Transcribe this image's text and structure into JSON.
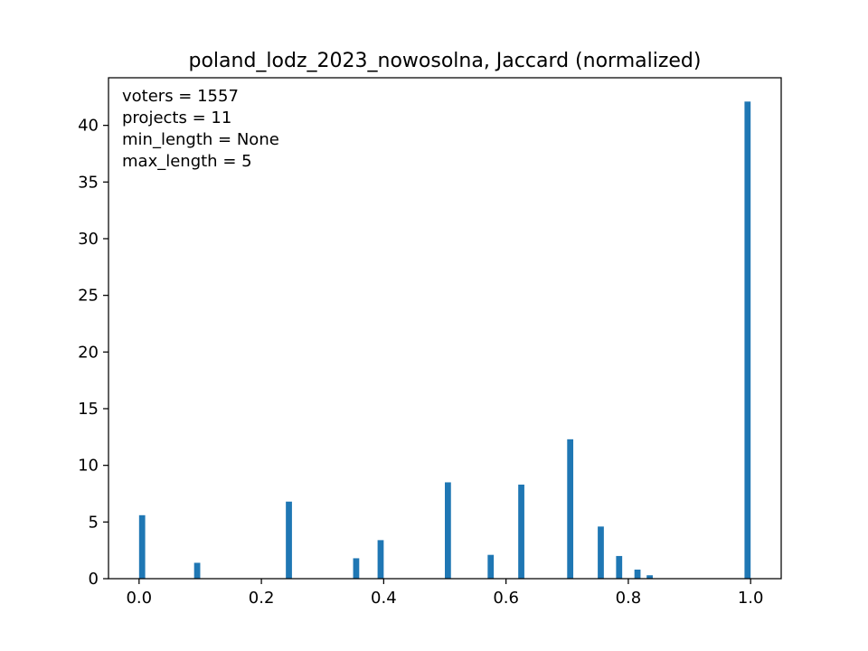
{
  "chart_data": {
    "type": "bar",
    "title": "poland_lodz_2023_nowosolna, Jaccard (normalized)",
    "xlabel": "",
    "ylabel": "",
    "xlim": [
      -0.05,
      1.05
    ],
    "ylim": [
      0,
      44.2
    ],
    "grid": false,
    "bar_color": "#1f77b4",
    "bar_width": 0.01,
    "x_ticks": [
      {
        "value": 0.0,
        "label": "0.0"
      },
      {
        "value": 0.2,
        "label": "0.2"
      },
      {
        "value": 0.4,
        "label": "0.4"
      },
      {
        "value": 0.6,
        "label": "0.6"
      },
      {
        "value": 0.8,
        "label": "0.8"
      },
      {
        "value": 1.0,
        "label": "1.0"
      }
    ],
    "y_ticks": [
      {
        "value": 0,
        "label": "0"
      },
      {
        "value": 5,
        "label": "5"
      },
      {
        "value": 10,
        "label": "10"
      },
      {
        "value": 15,
        "label": "15"
      },
      {
        "value": 20,
        "label": "20"
      },
      {
        "value": 25,
        "label": "25"
      },
      {
        "value": 30,
        "label": "30"
      },
      {
        "value": 35,
        "label": "35"
      },
      {
        "value": 40,
        "label": "40"
      }
    ],
    "annotations": [
      "voters = 1557",
      "projects = 11",
      "min_length = None",
      "max_length = 5"
    ],
    "bars": [
      {
        "x": 0.005,
        "value": 5.6
      },
      {
        "x": 0.095,
        "value": 1.4
      },
      {
        "x": 0.245,
        "value": 6.8
      },
      {
        "x": 0.355,
        "value": 1.8
      },
      {
        "x": 0.395,
        "value": 3.4
      },
      {
        "x": 0.505,
        "value": 8.5
      },
      {
        "x": 0.575,
        "value": 2.1
      },
      {
        "x": 0.625,
        "value": 8.3
      },
      {
        "x": 0.705,
        "value": 12.3
      },
      {
        "x": 0.755,
        "value": 4.6
      },
      {
        "x": 0.785,
        "value": 2.0
      },
      {
        "x": 0.815,
        "value": 0.8
      },
      {
        "x": 0.835,
        "value": 0.3
      },
      {
        "x": 0.995,
        "value": 42.1
      }
    ]
  }
}
